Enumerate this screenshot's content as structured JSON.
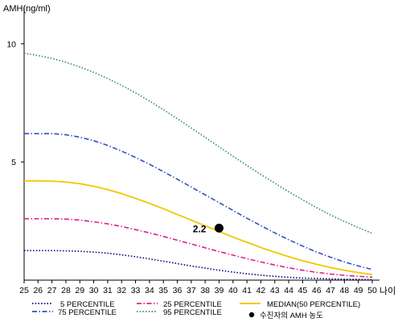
{
  "chart_data": {
    "type": "line",
    "ylabel": "AMH(ng/ml)",
    "xlabel": "나이",
    "x": [
      25,
      26,
      27,
      28,
      29,
      30,
      31,
      32,
      33,
      34,
      35,
      36,
      37,
      38,
      39,
      40,
      41,
      42,
      43,
      44,
      45,
      46,
      47,
      48,
      49,
      50
    ],
    "xlim": [
      25,
      50
    ],
    "ylim": [
      0,
      11
    ],
    "yticks": [
      5,
      10
    ],
    "grid": false,
    "legend_position": "bottom",
    "series": [
      {
        "name": "5 PERCENTILE",
        "color": "#000080",
        "style": "dotted",
        "values": [
          1.25,
          1.25,
          1.25,
          1.24,
          1.22,
          1.19,
          1.14,
          1.07,
          0.99,
          0.9,
          0.8,
          0.7,
          0.6,
          0.51,
          0.42,
          0.34,
          0.27,
          0.21,
          0.16,
          0.12,
          0.09,
          0.07,
          0.05,
          0.04,
          0.03,
          0.02
        ]
      },
      {
        "name": "25 PERCENTILE",
        "color": "#e0208c",
        "style": "dashdot",
        "values": [
          2.6,
          2.6,
          2.6,
          2.58,
          2.54,
          2.47,
          2.38,
          2.27,
          2.14,
          2.0,
          1.85,
          1.69,
          1.53,
          1.37,
          1.21,
          1.06,
          0.91,
          0.77,
          0.64,
          0.52,
          0.42,
          0.33,
          0.26,
          0.2,
          0.16,
          0.13
        ]
      },
      {
        "name": "MEDIAN(50 PERCENTILE)",
        "color": "#f2c800",
        "style": "solid",
        "values": [
          4.2,
          4.2,
          4.19,
          4.15,
          4.08,
          3.97,
          3.83,
          3.66,
          3.46,
          3.25,
          3.02,
          2.78,
          2.54,
          2.3,
          2.06,
          1.82,
          1.6,
          1.38,
          1.18,
          0.99,
          0.82,
          0.67,
          0.53,
          0.42,
          0.32,
          0.24
        ]
      },
      {
        "name": "75 PERCENTILE",
        "color": "#3050c0",
        "style": "dashdot",
        "values": [
          6.2,
          6.2,
          6.2,
          6.15,
          6.05,
          5.9,
          5.7,
          5.46,
          5.19,
          4.9,
          4.59,
          4.27,
          3.94,
          3.61,
          3.28,
          2.95,
          2.62,
          2.31,
          2.0,
          1.71,
          1.44,
          1.19,
          0.97,
          0.77,
          0.6,
          0.45
        ]
      },
      {
        "name": "95 PERCENTILE",
        "color": "#2e8b57",
        "style": "dotted",
        "values": [
          9.6,
          9.5,
          9.38,
          9.22,
          9.02,
          8.79,
          8.53,
          8.24,
          7.92,
          7.58,
          7.21,
          6.83,
          6.44,
          6.04,
          5.64,
          5.24,
          4.85,
          4.47,
          4.1,
          3.74,
          3.4,
          3.07,
          2.76,
          2.48,
          2.22,
          1.98
        ]
      }
    ],
    "point": {
      "name": "수진자의 AMH 농도",
      "x": 39,
      "y": 2.2,
      "label": "2.2",
      "color": "#000000"
    }
  }
}
